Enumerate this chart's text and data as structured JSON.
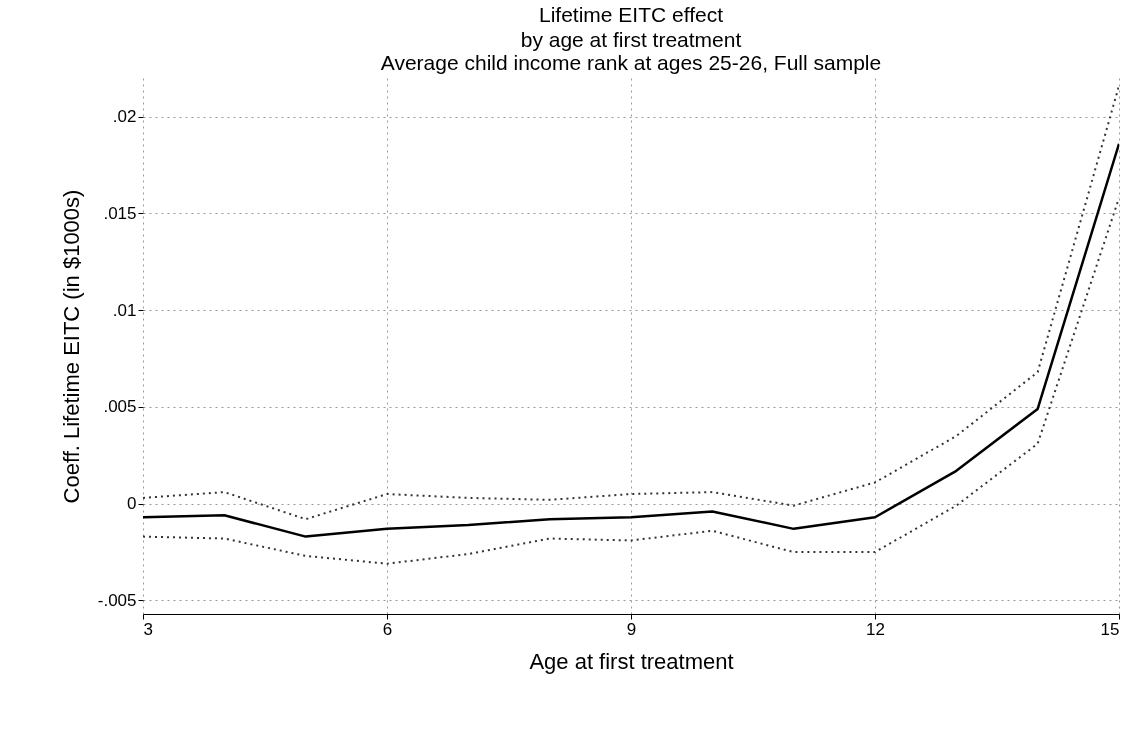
{
  "chart_data": {
    "type": "line",
    "title": "Lifetime EITC effect",
    "subtitle": [
      "by age at first treatment",
      "Average child income rank at ages 25-26, Full sample"
    ],
    "xlabel": "Age at first treatment",
    "ylabel": "Coeff. Lifetime EITC (in $1000s)",
    "x": [
      3,
      4,
      5,
      6,
      7,
      8,
      9,
      10,
      11,
      12,
      13,
      14,
      15
    ],
    "series": [
      {
        "color": "#000000",
        "line_style": "solid",
        "values": [
          -0.0007,
          -0.0006,
          -0.0017,
          -0.0013,
          -0.0011,
          -0.0008,
          -0.0007,
          -0.0004,
          -0.0013,
          -0.0007,
          0.0017,
          0.0049,
          0.0186
        ]
      },
      {
        "color": "#333333",
        "line_style": "dotted",
        "values": [
          0.0003,
          0.0006,
          -0.0008,
          0.0005,
          0.0003,
          0.0002,
          0.0005,
          0.0006,
          -0.0001,
          0.0011,
          0.0035,
          0.0068,
          0.0216
        ]
      },
      {
        "color": "#333333",
        "line_style": "dotted",
        "values": [
          -0.0017,
          -0.0018,
          -0.0027,
          -0.0031,
          -0.0026,
          -0.0018,
          -0.0019,
          -0.0014,
          -0.0025,
          -0.0025,
          -0.0001,
          0.0031,
          0.0158
        ]
      }
    ],
    "xlim": [
      3,
      15
    ],
    "ylim": [
      -0.0057,
      0.022
    ],
    "xticks": [
      3,
      6,
      9,
      12,
      15
    ],
    "yticks": [
      {
        "value": -0.005,
        "label": "-.005"
      },
      0,
      {
        "value": 0.005,
        "label": ".005"
      },
      {
        "value": 0.01,
        "label": ".01"
      },
      {
        "value": 0.015,
        "label": ".015"
      },
      {
        "value": 0.02,
        "label": ".02"
      }
    ],
    "grid": true,
    "marker": "none"
  }
}
